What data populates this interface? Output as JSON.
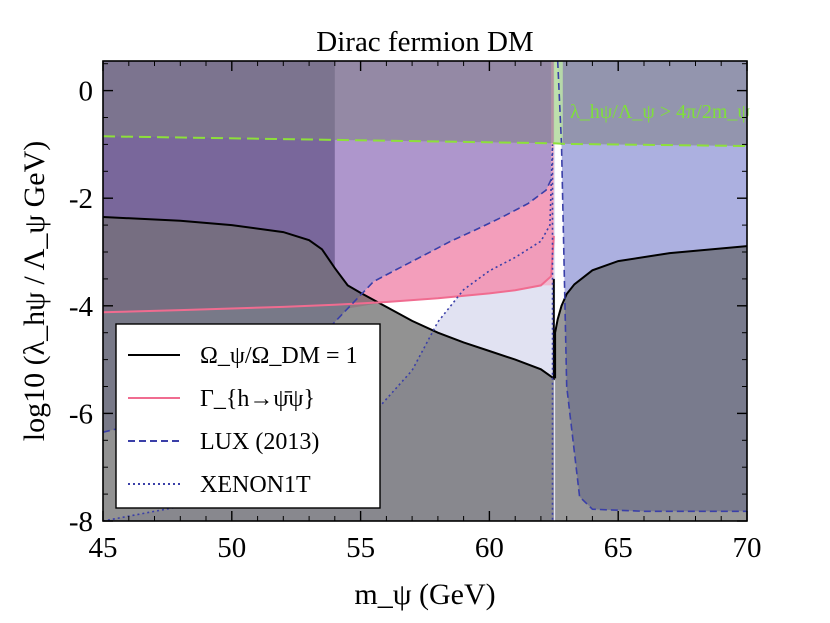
{
  "chart_data": {
    "type": "area",
    "title": "Dirac fermion DM",
    "xlabel": "m_ψ (GeV)",
    "ylabel": "log10 (λ_hψ / Λ_ψ GeV)",
    "xlim": [
      45,
      70
    ],
    "ylim": [
      -8,
      0.55
    ],
    "xticks": [
      45,
      50,
      55,
      60,
      65,
      70
    ],
    "xtick_labels": [
      "45",
      "50",
      "55",
      "60",
      "65",
      "70"
    ],
    "yticks": [
      0,
      -2,
      -4,
      -6,
      -8
    ],
    "ytick_labels": [
      "0",
      "-2",
      "-4",
      "-6",
      "-8"
    ],
    "legend_position": "lower-left",
    "legend": [
      {
        "label": "Ω_ψ/Ω_DM = 1",
        "style": "solid",
        "color": "#000000"
      },
      {
        "label": "Γ_{h→ψ̄ψ}",
        "style": "solid",
        "color": "#f06c90"
      },
      {
        "label": "LUX (2013)",
        "style": "dashed",
        "color": "#3a3fa8"
      },
      {
        "label": "XENON1T",
        "style": "dotted",
        "color": "#3a3fa8"
      }
    ],
    "annotation": "λ_hψ/Λ_ψ > 4π/2m_ψ",
    "series": [
      {
        "name": "Ω_ψ/Ω_DM = 1 (left branch)",
        "x": [
          45,
          48,
          50,
          52,
          53,
          53.5,
          54,
          54.5,
          55,
          56,
          57,
          58,
          59,
          60,
          61,
          62,
          62.5
        ],
        "y": [
          -2.35,
          -2.42,
          -2.5,
          -2.63,
          -2.78,
          -2.95,
          -3.3,
          -3.62,
          -3.76,
          -4.02,
          -4.28,
          -4.5,
          -4.68,
          -4.84,
          -5.0,
          -5.18,
          -5.35
        ]
      },
      {
        "name": "Ω_ψ/Ω_DM = 1 (right branch)",
        "x": [
          62.55,
          62.65,
          62.8,
          63.0,
          63.3,
          64,
          65,
          67,
          70
        ],
        "y": [
          -4.5,
          -4.25,
          -4.0,
          -3.78,
          -3.6,
          -3.34,
          -3.17,
          -3.02,
          -2.89
        ]
      },
      {
        "name": "Γ_h→ψ̄ψ",
        "x": [
          45,
          48,
          50,
          52,
          54,
          56,
          58,
          60,
          61,
          62,
          62.4,
          62.5
        ],
        "y": [
          -4.12,
          -4.08,
          -4.05,
          -4.02,
          -3.98,
          -3.93,
          -3.86,
          -3.77,
          -3.71,
          -3.62,
          -3.45,
          -2.7
        ]
      },
      {
        "name": "LUX (2013) left",
        "x": [
          45,
          48,
          50,
          52,
          53.5,
          54.5,
          55.5,
          56.5,
          57.5,
          58.5,
          59.5,
          60.5,
          61.5,
          62.2,
          62.4
        ],
        "y": [
          -6.35,
          -6.0,
          -5.6,
          -5.05,
          -4.55,
          -4.05,
          -3.55,
          -3.3,
          -3.05,
          -2.8,
          -2.58,
          -2.35,
          -2.1,
          -1.85,
          -1.65
        ]
      },
      {
        "name": "LUX (2013) right",
        "x": [
          62.65,
          62.8,
          63.0,
          63.5,
          64,
          66,
          70
        ],
        "y": [
          0.55,
          -1.0,
          -5.5,
          -7.55,
          -7.78,
          -7.82,
          -7.82
        ]
      },
      {
        "name": "XENON1T",
        "x": [
          45,
          50,
          52,
          54,
          55.5,
          57,
          58,
          59,
          60,
          61,
          62,
          62.35,
          62.45,
          62.45
        ],
        "y": [
          -8.0,
          -7.55,
          -7.2,
          -6.6,
          -6.0,
          -5.2,
          -4.3,
          -3.7,
          -3.35,
          -3.1,
          -2.8,
          -2.5,
          -1.0,
          -8.0
        ]
      },
      {
        "name": "Perturbativity 4π/2m_ψ",
        "x": [
          45,
          62.5,
          62.9,
          70
        ],
        "y": [
          -0.85,
          -0.98,
          -0.99,
          -1.03
        ]
      }
    ]
  }
}
